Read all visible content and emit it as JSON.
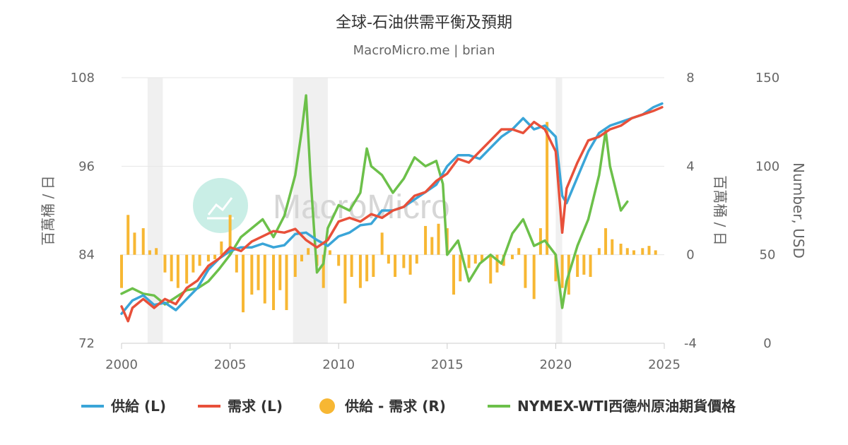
{
  "colors": {
    "supply": "#3aa5d8",
    "demand": "#e8503a",
    "balance": "#f7b733",
    "wti": "#6cc04a",
    "recession": "#f0f0f0",
    "grid": "#e6e6e6",
    "watermark": "#c9eee6"
  },
  "watermark": {
    "text": "MacroMicro",
    "icon": "line-chart-icon"
  },
  "chart_data": {
    "type": "line",
    "title": "全球-石油供需平衡及預期",
    "subtitle": "MacroMicro.me | brian",
    "x_ticks": [
      "2000",
      "2005",
      "2010",
      "2015",
      "2020",
      "2025"
    ],
    "xlim": [
      2000,
      2025
    ],
    "left_axis": {
      "title": "百萬桶 / 日",
      "ticks": [
        "108",
        "96",
        "84",
        "72"
      ],
      "ylim": [
        72,
        108
      ]
    },
    "right_axis_1": {
      "title": "百萬桶 / 日",
      "ticks": [
        "8",
        "4",
        "0",
        "-4"
      ],
      "ylim": [
        -4,
        8
      ]
    },
    "right_axis_2": {
      "title": "Number, USD",
      "ticks": [
        "150",
        "100",
        "50",
        "0"
      ],
      "ylim": [
        0,
        150
      ]
    },
    "recessions": [
      [
        2001.2,
        2001.9
      ],
      [
        2007.9,
        2009.5
      ],
      [
        2020.0,
        2020.3
      ]
    ],
    "legend": {
      "supply": "供給 (L)",
      "demand": "需求 (L)",
      "balance": "供給 - 需求 (R)",
      "wti": "NYMEX-WTI西德州原油期貨價格"
    },
    "series": [
      {
        "name": "供給 (L)",
        "axis": "left",
        "x": [
          2000,
          2000.5,
          2001,
          2001.5,
          2002,
          2002.5,
          2003,
          2003.5,
          2004,
          2004.5,
          2005,
          2005.5,
          2006,
          2006.5,
          2007,
          2007.5,
          2008,
          2008.5,
          2009,
          2009.5,
          2010,
          2010.5,
          2011,
          2011.5,
          2012,
          2012.5,
          2013,
          2013.5,
          2014,
          2014.5,
          2015,
          2015.5,
          2016,
          2016.5,
          2017,
          2017.5,
          2018,
          2018.5,
          2019,
          2019.5,
          2020,
          2020.3,
          2020.5,
          2021,
          2021.5,
          2022,
          2022.5,
          2023,
          2023.5,
          2024,
          2024.5,
          2024.9
        ],
        "y": [
          76,
          77.8,
          78.5,
          77.2,
          77.5,
          76.5,
          78,
          79.5,
          82,
          83.5,
          84.5,
          85,
          85,
          85.5,
          85,
          85.3,
          86.8,
          87,
          86,
          85.2,
          86.5,
          87,
          88,
          88.2,
          90,
          90,
          90.5,
          91.5,
          92.5,
          93.5,
          96,
          97.5,
          97.5,
          97,
          98.5,
          100,
          101,
          102.5,
          101,
          101.5,
          100,
          92,
          91,
          94.5,
          98,
          100.5,
          101.5,
          102,
          102.5,
          103,
          104,
          104.5
        ]
      },
      {
        "name": "需求 (L)",
        "axis": "left",
        "x": [
          2000,
          2000.3,
          2000.5,
          2001,
          2001.5,
          2002,
          2002.5,
          2003,
          2003.5,
          2004,
          2004.5,
          2005,
          2005.5,
          2006,
          2006.5,
          2007,
          2007.5,
          2008,
          2008.5,
          2009,
          2009.5,
          2010,
          2010.5,
          2011,
          2011.5,
          2012,
          2012.5,
          2013,
          2013.5,
          2014,
          2014.5,
          2015,
          2015.5,
          2016,
          2016.5,
          2017,
          2017.5,
          2018,
          2018.5,
          2019,
          2019.5,
          2020,
          2020.3,
          2020.5,
          2021,
          2021.5,
          2022,
          2022.5,
          2023,
          2023.5,
          2024,
          2024.5,
          2024.9
        ],
        "y": [
          77,
          75,
          76.8,
          78,
          76.8,
          78,
          77.3,
          79.5,
          80.5,
          82.5,
          83.5,
          85,
          84.5,
          85.8,
          86.5,
          87.2,
          87,
          87.5,
          86,
          85,
          86,
          88.5,
          89,
          88.5,
          89.5,
          89,
          90,
          90.5,
          92,
          92.5,
          94,
          95,
          97,
          96.5,
          98,
          99.5,
          101,
          101,
          100.5,
          102,
          101,
          98,
          87,
          93,
          96.5,
          99.5,
          100,
          101,
          101.5,
          102.5,
          103,
          103.5,
          104
        ]
      },
      {
        "name": "供給 - 需求 (R)",
        "axis": "right_1",
        "type": "bar",
        "x": [
          2000,
          2000.3,
          2000.6,
          2001,
          2001.3,
          2001.6,
          2002,
          2002.3,
          2002.6,
          2003,
          2003.3,
          2003.6,
          2004,
          2004.3,
          2004.6,
          2005,
          2005.3,
          2005.6,
          2006,
          2006.3,
          2006.6,
          2007,
          2007.3,
          2007.6,
          2008,
          2008.3,
          2008.6,
          2009,
          2009.3,
          2009.6,
          2010,
          2010.3,
          2010.6,
          2011,
          2011.3,
          2011.6,
          2012,
          2012.3,
          2012.6,
          2013,
          2013.3,
          2013.6,
          2014,
          2014.3,
          2014.6,
          2015,
          2015.3,
          2015.6,
          2016,
          2016.3,
          2016.6,
          2017,
          2017.3,
          2017.6,
          2018,
          2018.3,
          2018.6,
          2019,
          2019.3,
          2019.6,
          2020,
          2020.3,
          2020.6,
          2021,
          2021.3,
          2021.6,
          2022,
          2022.3,
          2022.6,
          2023,
          2023.3,
          2023.6,
          2024,
          2024.3,
          2024.6
        ],
        "y": [
          -1.5,
          1.8,
          1.0,
          1.2,
          0.2,
          0.3,
          -0.8,
          -1.2,
          -1.5,
          -1.3,
          -0.8,
          -0.5,
          -0.3,
          -0.2,
          0.6,
          1.8,
          -0.8,
          -2.6,
          -1.8,
          -1.6,
          -2.2,
          -2.5,
          -1.6,
          -2.5,
          -1.0,
          -0.3,
          0.3,
          -0.5,
          -1.5,
          0.2,
          -0.5,
          -2.2,
          -1.0,
          -1.5,
          -1.2,
          -1.0,
          1.0,
          -0.4,
          -1.0,
          -0.6,
          -0.9,
          -0.4,
          1.3,
          0.8,
          1.4,
          1.2,
          -1.8,
          -1.2,
          -0.6,
          -0.4,
          -0.3,
          -1.3,
          -0.8,
          -0.5,
          -0.2,
          0.3,
          -1.5,
          -2.0,
          1.2,
          6.0,
          -1.2,
          -1.5,
          -1.8,
          -1.0,
          -0.9,
          -1.0,
          0.3,
          1.2,
          0.7,
          0.5,
          0.3,
          0.2,
          0.3,
          0.4,
          0.2
        ]
      },
      {
        "name": "NYMEX-WTI西德州原油期貨價格",
        "axis": "right_2",
        "x": [
          2000,
          2000.5,
          2001,
          2001.5,
          2002,
          2002.5,
          2003,
          2003.5,
          2004,
          2004.5,
          2005,
          2005.5,
          2006,
          2006.5,
          2007,
          2007.5,
          2008,
          2008.3,
          2008.5,
          2008.7,
          2009,
          2009.3,
          2009.5,
          2010,
          2010.5,
          2011,
          2011.3,
          2011.5,
          2012,
          2012.5,
          2013,
          2013.5,
          2014,
          2014.5,
          2014.8,
          2015,
          2015.5,
          2016,
          2016.5,
          2017,
          2017.5,
          2018,
          2018.5,
          2019,
          2019.5,
          2020,
          2020.3,
          2020.5,
          2021,
          2021.5,
          2022,
          2022.3,
          2022.5,
          2023,
          2023.3
        ],
        "y": [
          28,
          31,
          28,
          27,
          22,
          26,
          30,
          31,
          35,
          42,
          50,
          60,
          65,
          70,
          60,
          72,
          95,
          120,
          140,
          95,
          40,
          45,
          65,
          78,
          75,
          85,
          110,
          100,
          95,
          85,
          93,
          105,
          100,
          103,
          90,
          50,
          58,
          35,
          45,
          50,
          45,
          62,
          70,
          55,
          58,
          50,
          20,
          35,
          55,
          70,
          95,
          120,
          100,
          75,
          80
        ]
      }
    ]
  }
}
